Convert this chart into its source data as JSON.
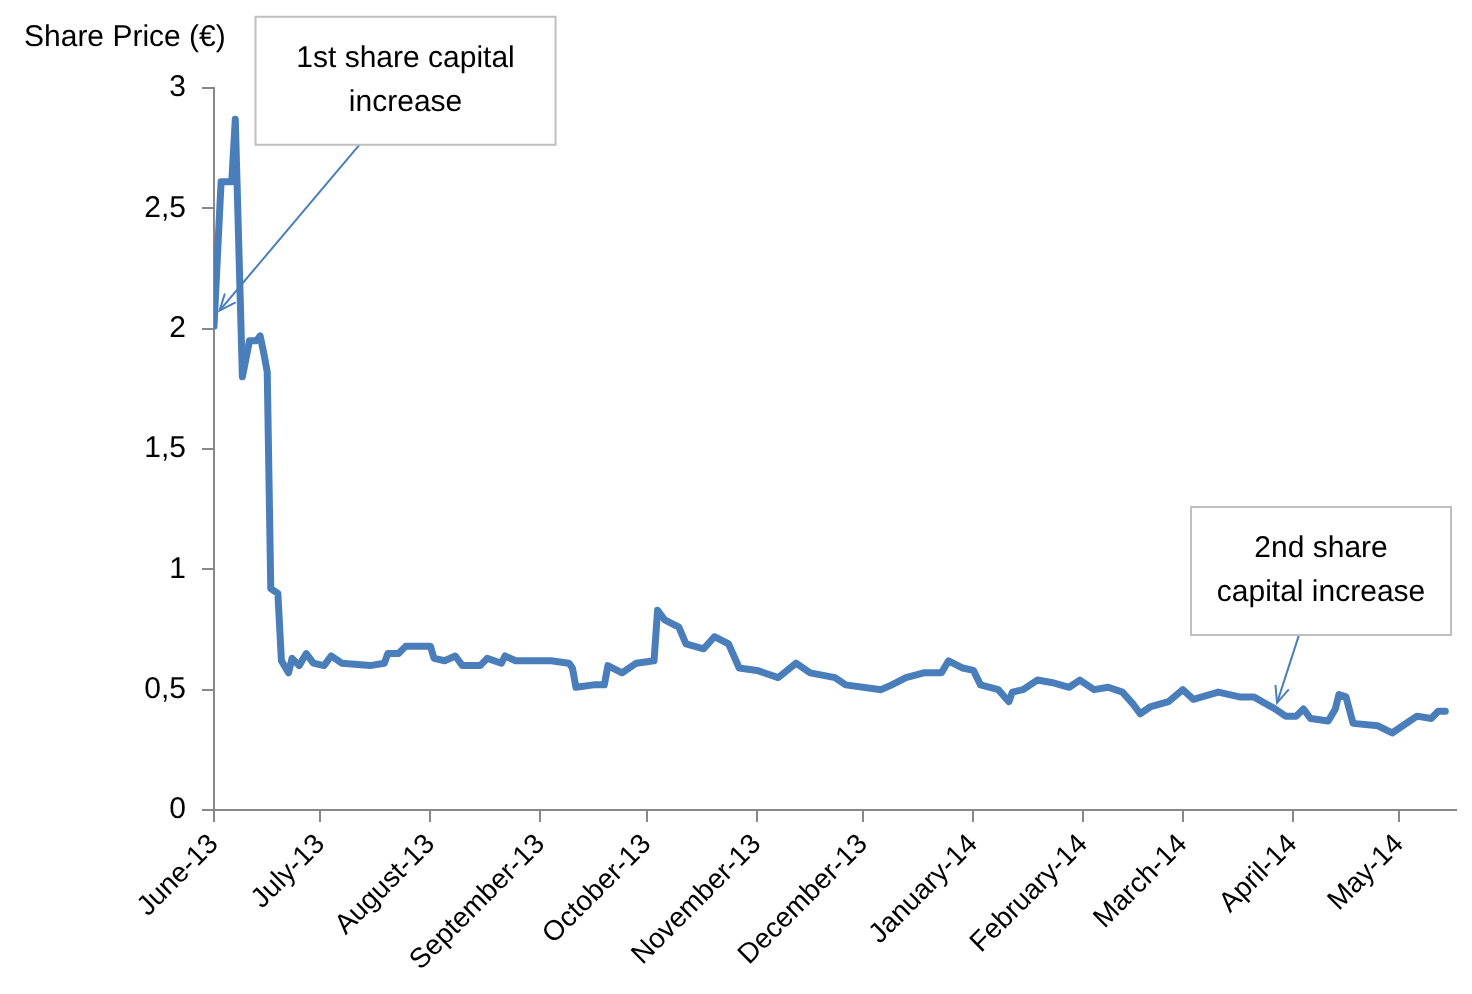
{
  "chart_data": {
    "type": "line",
    "ylabel": "Share Price (€)",
    "x": [
      "2013-06-01",
      "2013-06-03",
      "2013-06-06",
      "2013-06-07",
      "2013-06-09",
      "2013-06-11",
      "2013-06-13",
      "2013-06-14",
      "2013-06-15",
      "2013-06-16",
      "2013-06-17",
      "2013-06-19",
      "2013-06-20",
      "2013-06-22",
      "2013-06-23",
      "2013-06-25",
      "2013-06-27",
      "2013-06-29",
      "2013-07-02",
      "2013-07-04",
      "2013-07-07",
      "2013-07-15",
      "2013-07-19",
      "2013-07-20",
      "2013-07-23",
      "2013-07-25",
      "2013-08-01",
      "2013-08-02",
      "2013-08-05",
      "2013-08-08",
      "2013-08-10",
      "2013-08-15",
      "2013-08-17",
      "2013-08-21",
      "2013-08-22",
      "2013-08-25",
      "2013-09-04",
      "2013-09-09",
      "2013-09-10",
      "2013-09-11",
      "2013-09-16",
      "2013-09-19",
      "2013-09-20",
      "2013-09-24",
      "2013-09-28",
      "2013-10-03",
      "2013-10-04",
      "2013-10-06",
      "2013-10-10",
      "2013-10-12",
      "2013-10-17",
      "2013-10-20",
      "2013-10-24",
      "2013-10-27",
      "2013-11-01",
      "2013-11-07",
      "2013-11-12",
      "2013-11-16",
      "2013-11-23",
      "2013-11-26",
      "2013-12-06",
      "2013-12-09",
      "2013-12-13",
      "2013-12-18",
      "2013-12-23",
      "2013-12-25",
      "2013-12-29",
      "2014-01-01",
      "2014-01-03",
      "2014-01-08",
      "2014-01-11",
      "2014-01-12",
      "2014-01-15",
      "2014-01-19",
      "2014-01-23",
      "2014-01-28",
      "2014-01-31",
      "2014-02-04",
      "2014-02-08",
      "2014-02-12",
      "2014-02-15",
      "2014-02-17",
      "2014-02-20",
      "2014-02-25",
      "2014-03-01",
      "2014-03-04",
      "2014-03-11",
      "2014-03-17",
      "2014-03-21",
      "2014-03-27",
      "2014-03-30",
      "2014-04-02",
      "2014-04-04",
      "2014-04-06",
      "2014-04-11",
      "2014-04-13",
      "2014-04-14",
      "2014-04-16",
      "2014-04-18",
      "2014-04-25",
      "2014-04-29",
      "2014-05-02",
      "2014-05-06",
      "2014-05-10",
      "2014-05-12",
      "2014-05-14"
    ],
    "series": [
      {
        "color": "#4a7ebb",
        "values": [
          2.01,
          2.61,
          2.61,
          2.87,
          1.8,
          1.95,
          1.95,
          1.97,
          1.9,
          1.82,
          0.92,
          0.9,
          0.62,
          0.57,
          0.63,
          0.6,
          0.65,
          0.61,
          0.6,
          0.64,
          0.61,
          0.6,
          0.61,
          0.65,
          0.65,
          0.68,
          0.68,
          0.63,
          0.62,
          0.64,
          0.6,
          0.6,
          0.63,
          0.61,
          0.64,
          0.62,
          0.62,
          0.61,
          0.59,
          0.51,
          0.52,
          0.52,
          0.6,
          0.57,
          0.61,
          0.62,
          0.83,
          0.79,
          0.76,
          0.69,
          0.67,
          0.72,
          0.69,
          0.59,
          0.58,
          0.55,
          0.61,
          0.57,
          0.55,
          0.52,
          0.5,
          0.52,
          0.55,
          0.57,
          0.57,
          0.62,
          0.59,
          0.58,
          0.52,
          0.5,
          0.45,
          0.49,
          0.5,
          0.54,
          0.53,
          0.51,
          0.54,
          0.5,
          0.51,
          0.49,
          0.44,
          0.4,
          0.43,
          0.45,
          0.5,
          0.46,
          0.49,
          0.47,
          0.47,
          0.42,
          0.39,
          0.39,
          0.42,
          0.38,
          0.37,
          0.42,
          0.48,
          0.47,
          0.36,
          0.35,
          0.32,
          0.35,
          0.39,
          0.38,
          0.41,
          0.41
        ]
      }
    ],
    "xlim": [
      "2013-06-01",
      "2014-05-17"
    ],
    "xticks": [
      {
        "value": "2013-06",
        "label": "June-13"
      },
      {
        "value": "2013-07",
        "label": "July-13"
      },
      {
        "value": "2013-08",
        "label": "August-13"
      },
      {
        "value": "2013-09",
        "label": "September-13"
      },
      {
        "value": "2013-10",
        "label": "October-13"
      },
      {
        "value": "2013-11",
        "label": "November-13"
      },
      {
        "value": "2013-12",
        "label": "December-13"
      },
      {
        "value": "2014-01",
        "label": "January-14"
      },
      {
        "value": "2014-02",
        "label": "February-14"
      },
      {
        "value": "2014-03",
        "label": "March-14"
      },
      {
        "value": "2014-04",
        "label": "April-14"
      },
      {
        "value": "2014-05",
        "label": "May-14"
      }
    ],
    "ylim": [
      0,
      3
    ],
    "yticks": [
      0,
      {
        "value": 0.5,
        "label": "0,5"
      },
      1,
      {
        "value": 1.5,
        "label": "1,5"
      },
      2,
      {
        "value": 2.5,
        "label": "2,5"
      },
      3
    ],
    "annotations": [
      {
        "text": "1st share capital increase",
        "x": "2013-06-02",
        "y": 2.05
      },
      {
        "text": "2nd share capital increase",
        "x": "2014-03-27",
        "y": 0.42
      }
    ],
    "grid": false,
    "legend": false,
    "marker": "none",
    "line_style": "solid"
  }
}
